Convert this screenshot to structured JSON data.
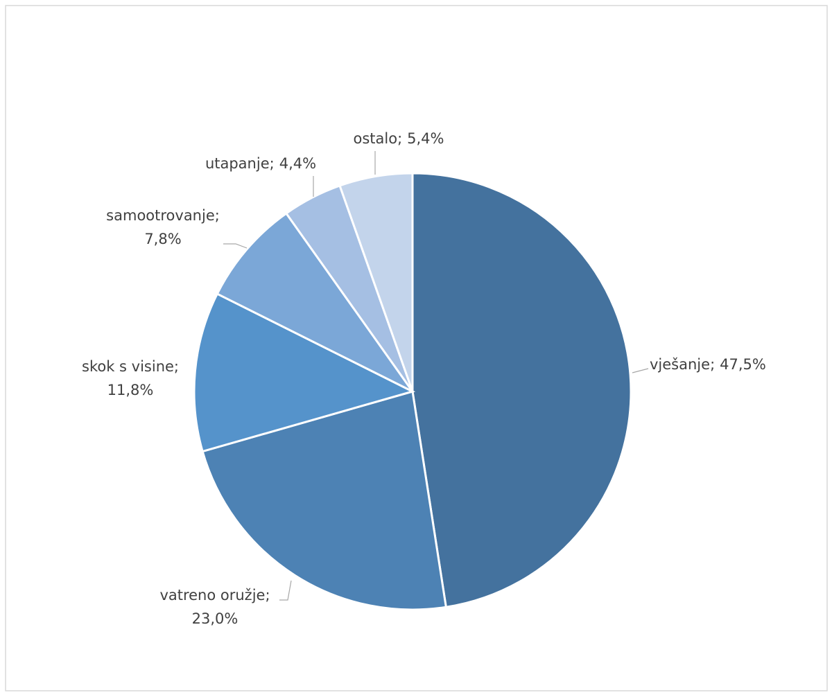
{
  "chart_data": {
    "type": "pie",
    "categories": [
      "vješanje",
      "vatreno oružje",
      "skok s visine",
      "samootrovanje",
      "utapanje",
      "ostalo"
    ],
    "values": [
      47.5,
      23.0,
      11.8,
      7.8,
      4.4,
      5.4
    ],
    "value_labels": [
      "47,5%",
      "23,0%",
      "11,8%",
      "7,8%",
      "4,4%",
      "5,4%"
    ],
    "label_separator": ";",
    "colors": [
      "#44729e",
      "#4d82b4",
      "#5593cb",
      "#7ba7d7",
      "#a5bfe3",
      "#c3d4eb"
    ]
  }
}
